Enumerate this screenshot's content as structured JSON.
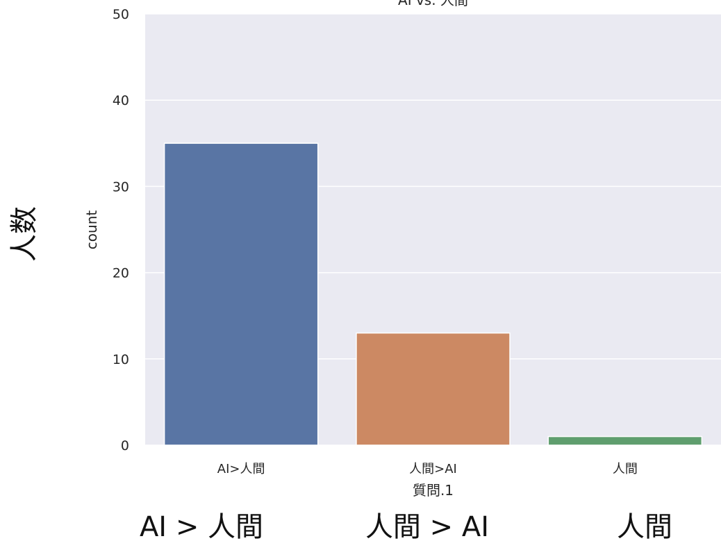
{
  "chart_data": {
    "type": "bar",
    "title": "AI vs. 人間",
    "xlabel": "質問.1",
    "ylabel": "count",
    "categories": [
      "AI>人間",
      "人間>AI",
      "人間"
    ],
    "values": [
      35,
      13,
      1
    ],
    "colors": [
      "#5975a4",
      "#cc8963",
      "#5f9e6e"
    ],
    "ylim": [
      0,
      50
    ],
    "yticks": [
      0,
      10,
      20,
      30,
      40,
      50
    ],
    "grid": true,
    "background": "#eaeaf2"
  },
  "annotations": {
    "side_label": "人数",
    "bottom_labels": [
      "AI > 人間",
      "人間 > AI",
      "人間"
    ]
  }
}
